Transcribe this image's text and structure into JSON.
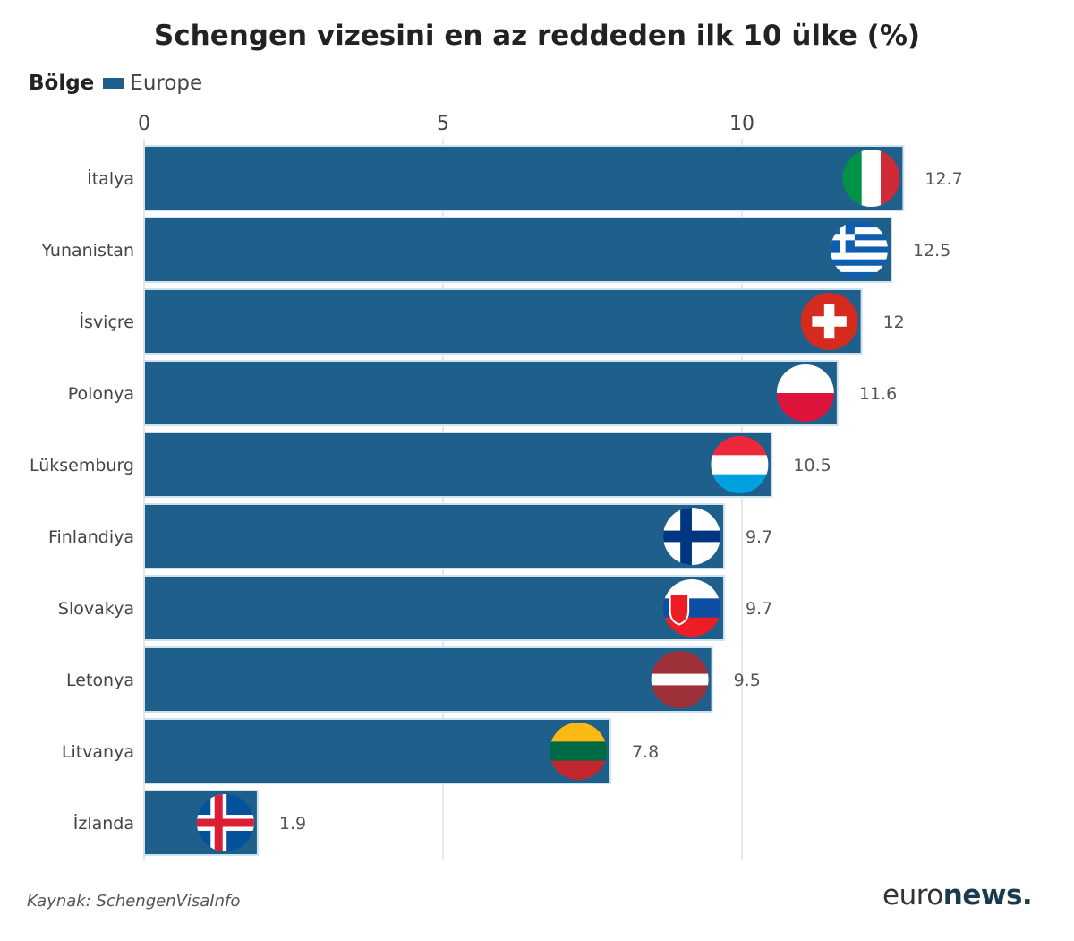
{
  "chart_data": {
    "type": "bar",
    "orientation": "horizontal",
    "title": "Schengen vizesini en az reddeden ilk 10 ülke (%)",
    "legend": {
      "title": "Bölge",
      "entries": [
        {
          "name": "Europe",
          "color": "#1f5f8b"
        }
      ],
      "placement": "top-left"
    },
    "categories": [
      "İtalya",
      "Yunanistan",
      "İsviçre",
      "Polonya",
      "Lüksemburg",
      "Finlandiya",
      "Slovakya",
      "Letonya",
      "Litvanya",
      "İzlanda"
    ],
    "series": [
      {
        "name": "Europe",
        "values": [
          12.7,
          12.5,
          12,
          11.6,
          10.5,
          9.7,
          9.7,
          9.5,
          7.8,
          1.9
        ]
      }
    ],
    "data_labels": [
      "12.7",
      "12.5",
      "12",
      "11.6",
      "10.5",
      "9.7",
      "9.7",
      "9.5",
      "7.8",
      "1.9"
    ],
    "flags": [
      "italy-flag-icon",
      "greece-flag-icon",
      "switzerland-flag-icon",
      "poland-flag-icon",
      "luxembourg-flag-icon",
      "finland-flag-icon",
      "slovakia-flag-icon",
      "latvia-flag-icon",
      "lithuania-flag-icon",
      "iceland-flag-icon"
    ],
    "xlim": [
      0,
      13
    ],
    "xticks": [
      0,
      5,
      10
    ],
    "xtick_labels": [
      "0",
      "5",
      "10"
    ],
    "axis_position": "top",
    "grid": true,
    "bar_color": "#1f5f8b"
  },
  "footer": {
    "source": "Kaynak: SchengenVisaInfo",
    "logo_text_light": "euro",
    "logo_text_bold": "news."
  }
}
